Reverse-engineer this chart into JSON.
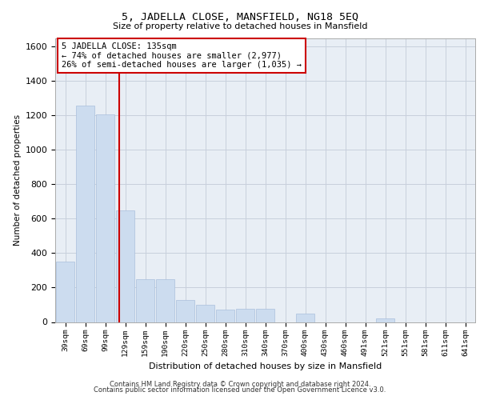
{
  "title": "5, JADELLA CLOSE, MANSFIELD, NG18 5EQ",
  "subtitle": "Size of property relative to detached houses in Mansfield",
  "xlabel": "Distribution of detached houses by size in Mansfield",
  "ylabel": "Number of detached properties",
  "footer_line1": "Contains HM Land Registry data © Crown copyright and database right 2024.",
  "footer_line2": "Contains public sector information licensed under the Open Government Licence v3.0.",
  "categories": [
    "39sqm",
    "69sqm",
    "99sqm",
    "129sqm",
    "159sqm",
    "190sqm",
    "220sqm",
    "250sqm",
    "280sqm",
    "310sqm",
    "340sqm",
    "370sqm",
    "400sqm",
    "430sqm",
    "460sqm",
    "491sqm",
    "521sqm",
    "551sqm",
    "581sqm",
    "611sqm",
    "641sqm"
  ],
  "values": [
    350,
    1255,
    1205,
    650,
    248,
    248,
    130,
    100,
    70,
    75,
    75,
    0,
    50,
    0,
    0,
    0,
    20,
    0,
    0,
    0,
    0
  ],
  "bar_color": "#ccdcef",
  "bar_edge_color": "#aac0dc",
  "grid_color": "#c8d0dc",
  "plot_bg_color": "#e8eef5",
  "vline_x": 2.68,
  "vline_color": "#cc0000",
  "annotation_text": "5 JADELLA CLOSE: 135sqm\n← 74% of detached houses are smaller (2,977)\n26% of semi-detached houses are larger (1,035) →",
  "annotation_box_color": "#ffffff",
  "annotation_box_edge": "#cc0000",
  "ylim": [
    0,
    1650
  ],
  "yticks": [
    0,
    200,
    400,
    600,
    800,
    1000,
    1200,
    1400,
    1600
  ]
}
